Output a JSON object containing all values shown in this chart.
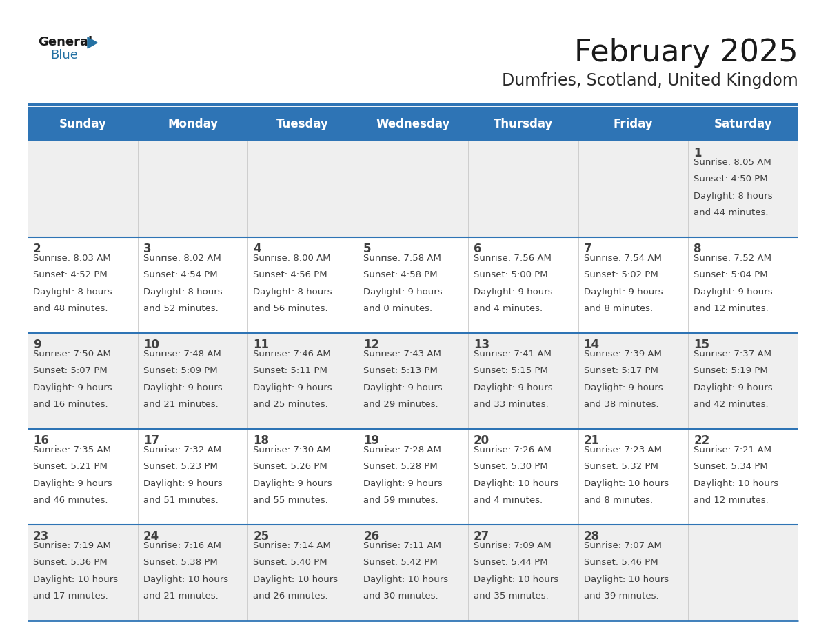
{
  "title": "February 2025",
  "subtitle": "Dumfries, Scotland, United Kingdom",
  "header_bg": "#2E74B5",
  "header_text_color": "#FFFFFF",
  "header_font_size": 12,
  "day_names": [
    "Sunday",
    "Monday",
    "Tuesday",
    "Wednesday",
    "Thursday",
    "Friday",
    "Saturday"
  ],
  "title_font_size": 32,
  "subtitle_font_size": 17,
  "cell_text_color": "#404040",
  "day_num_font_size": 12,
  "info_font_size": 9.5,
  "alt_row_bg": "#EFEFEF",
  "normal_row_bg": "#FFFFFF",
  "grid_line_color": "#2E74B5",
  "logo_general_color": "#1a1a1a",
  "logo_blue_color": "#2471A3",
  "logo_triangle_color": "#2471A3",
  "calendar": [
    [
      null,
      null,
      null,
      null,
      null,
      null,
      {
        "day": 1,
        "sunrise": "8:05 AM",
        "sunset": "4:50 PM",
        "daylight": "8 hours and 44 minutes"
      }
    ],
    [
      {
        "day": 2,
        "sunrise": "8:03 AM",
        "sunset": "4:52 PM",
        "daylight": "8 hours and 48 minutes"
      },
      {
        "day": 3,
        "sunrise": "8:02 AM",
        "sunset": "4:54 PM",
        "daylight": "8 hours and 52 minutes"
      },
      {
        "day": 4,
        "sunrise": "8:00 AM",
        "sunset": "4:56 PM",
        "daylight": "8 hours and 56 minutes"
      },
      {
        "day": 5,
        "sunrise": "7:58 AM",
        "sunset": "4:58 PM",
        "daylight": "9 hours and 0 minutes"
      },
      {
        "day": 6,
        "sunrise": "7:56 AM",
        "sunset": "5:00 PM",
        "daylight": "9 hours and 4 minutes"
      },
      {
        "day": 7,
        "sunrise": "7:54 AM",
        "sunset": "5:02 PM",
        "daylight": "9 hours and 8 minutes"
      },
      {
        "day": 8,
        "sunrise": "7:52 AM",
        "sunset": "5:04 PM",
        "daylight": "9 hours and 12 minutes"
      }
    ],
    [
      {
        "day": 9,
        "sunrise": "7:50 AM",
        "sunset": "5:07 PM",
        "daylight": "9 hours and 16 minutes"
      },
      {
        "day": 10,
        "sunrise": "7:48 AM",
        "sunset": "5:09 PM",
        "daylight": "9 hours and 21 minutes"
      },
      {
        "day": 11,
        "sunrise": "7:46 AM",
        "sunset": "5:11 PM",
        "daylight": "9 hours and 25 minutes"
      },
      {
        "day": 12,
        "sunrise": "7:43 AM",
        "sunset": "5:13 PM",
        "daylight": "9 hours and 29 minutes"
      },
      {
        "day": 13,
        "sunrise": "7:41 AM",
        "sunset": "5:15 PM",
        "daylight": "9 hours and 33 minutes"
      },
      {
        "day": 14,
        "sunrise": "7:39 AM",
        "sunset": "5:17 PM",
        "daylight": "9 hours and 38 minutes"
      },
      {
        "day": 15,
        "sunrise": "7:37 AM",
        "sunset": "5:19 PM",
        "daylight": "9 hours and 42 minutes"
      }
    ],
    [
      {
        "day": 16,
        "sunrise": "7:35 AM",
        "sunset": "5:21 PM",
        "daylight": "9 hours and 46 minutes"
      },
      {
        "day": 17,
        "sunrise": "7:32 AM",
        "sunset": "5:23 PM",
        "daylight": "9 hours and 51 minutes"
      },
      {
        "day": 18,
        "sunrise": "7:30 AM",
        "sunset": "5:26 PM",
        "daylight": "9 hours and 55 minutes"
      },
      {
        "day": 19,
        "sunrise": "7:28 AM",
        "sunset": "5:28 PM",
        "daylight": "9 hours and 59 minutes"
      },
      {
        "day": 20,
        "sunrise": "7:26 AM",
        "sunset": "5:30 PM",
        "daylight": "10 hours and 4 minutes"
      },
      {
        "day": 21,
        "sunrise": "7:23 AM",
        "sunset": "5:32 PM",
        "daylight": "10 hours and 8 minutes"
      },
      {
        "day": 22,
        "sunrise": "7:21 AM",
        "sunset": "5:34 PM",
        "daylight": "10 hours and 12 minutes"
      }
    ],
    [
      {
        "day": 23,
        "sunrise": "7:19 AM",
        "sunset": "5:36 PM",
        "daylight": "10 hours and 17 minutes"
      },
      {
        "day": 24,
        "sunrise": "7:16 AM",
        "sunset": "5:38 PM",
        "daylight": "10 hours and 21 minutes"
      },
      {
        "day": 25,
        "sunrise": "7:14 AM",
        "sunset": "5:40 PM",
        "daylight": "10 hours and 26 minutes"
      },
      {
        "day": 26,
        "sunrise": "7:11 AM",
        "sunset": "5:42 PM",
        "daylight": "10 hours and 30 minutes"
      },
      {
        "day": 27,
        "sunrise": "7:09 AM",
        "sunset": "5:44 PM",
        "daylight": "10 hours and 35 minutes"
      },
      {
        "day": 28,
        "sunrise": "7:07 AM",
        "sunset": "5:46 PM",
        "daylight": "10 hours and 39 minutes"
      },
      null
    ]
  ]
}
